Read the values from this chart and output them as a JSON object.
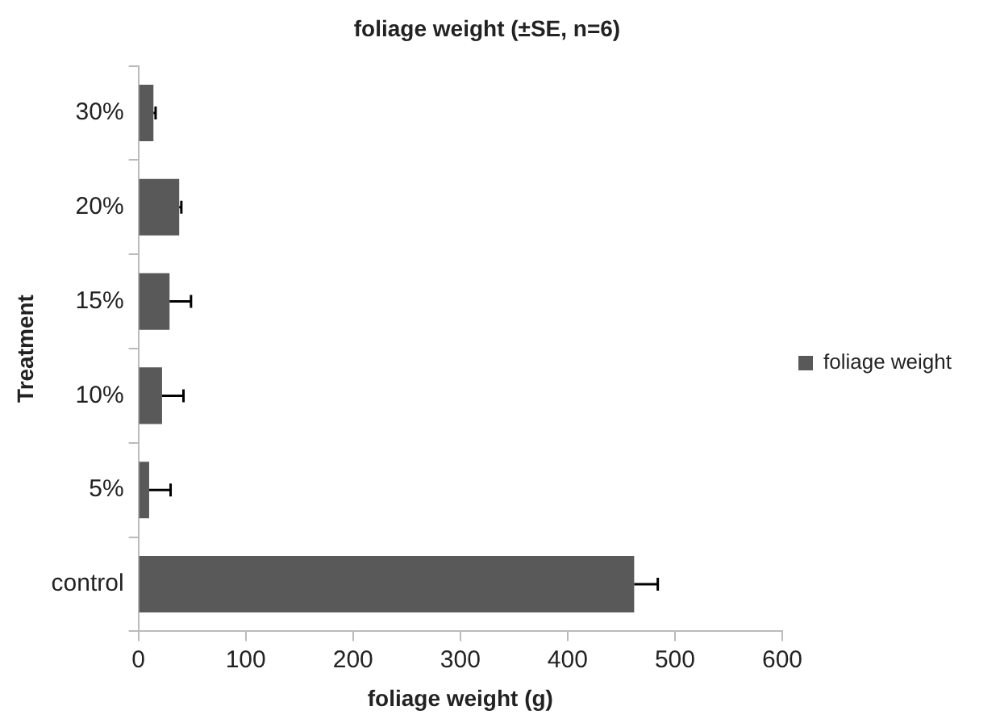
{
  "chart_data": {
    "type": "bar",
    "orientation": "horizontal",
    "title": "foliage weight (±SE, n=6)",
    "xlabel": "foliage weight (g)",
    "ylabel": "Treatment",
    "categories": [
      "30%",
      "20%",
      "15%",
      "10%",
      "5%",
      "control"
    ],
    "series": [
      {
        "name": "foliage weight",
        "color": "#595959",
        "values": [
          14,
          38,
          29,
          22,
          10,
          462
        ],
        "errors": [
          2,
          2,
          20,
          20,
          20,
          22
        ]
      }
    ],
    "xlim": [
      0,
      600
    ],
    "xticks": [
      0,
      100,
      200,
      300,
      400,
      500,
      600
    ],
    "grid": false,
    "legend": "right"
  }
}
